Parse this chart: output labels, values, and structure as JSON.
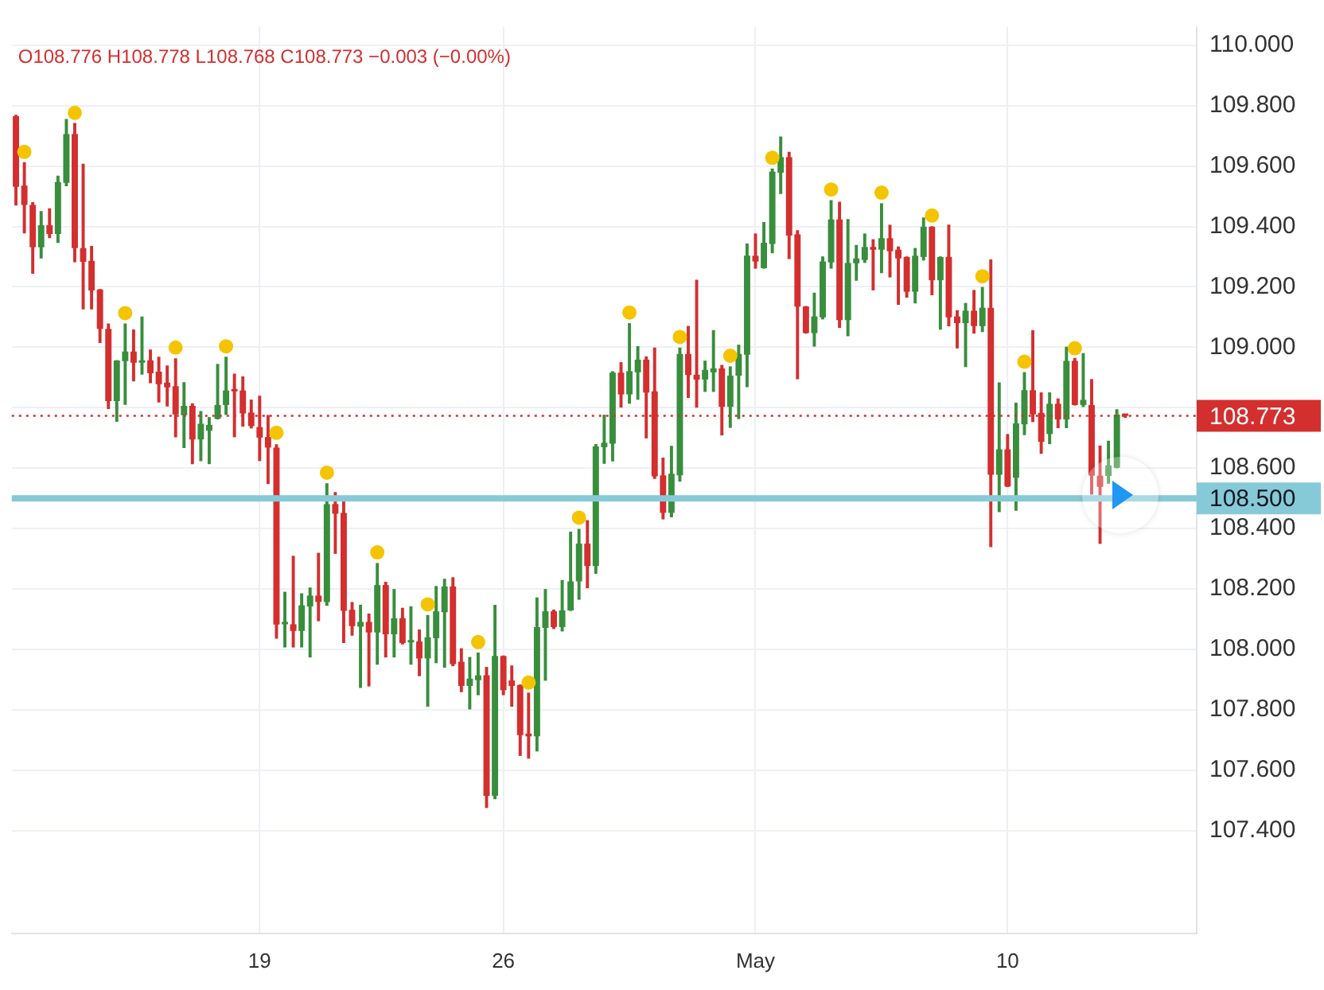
{
  "chart_data": {
    "type": "candlestick",
    "annotations": [
      "O108.776 H108.778 L108.768 C108.773 −0.003 (−0.00%)"
    ],
    "categories": [
      null,
      null,
      null,
      null,
      null,
      null,
      null,
      null,
      null,
      null,
      null,
      null,
      null,
      null,
      null,
      null,
      null,
      null,
      null,
      null,
      null,
      null,
      null,
      null,
      null,
      null,
      null,
      null,
      null,
      "19",
      null,
      null,
      null,
      null,
      null,
      null,
      null,
      null,
      null,
      null,
      null,
      null,
      null,
      null,
      null,
      null,
      null,
      null,
      null,
      null,
      null,
      null,
      null,
      null,
      null,
      null,
      null,
      null,
      "26",
      null,
      null,
      null,
      null,
      null,
      null,
      null,
      null,
      null,
      null,
      null,
      null,
      null,
      null,
      null,
      null,
      null,
      null,
      null,
      null,
      null,
      null,
      null,
      null,
      null,
      null,
      null,
      null,
      null,
      "May",
      null,
      null,
      null,
      null,
      null,
      null,
      null,
      null,
      null,
      null,
      null,
      null,
      null,
      null,
      null,
      null,
      null,
      null,
      null,
      null,
      null,
      null,
      null,
      null,
      null,
      null,
      null,
      null,
      null,
      "10",
      null,
      null,
      null,
      null,
      null,
      null,
      null,
      null,
      null,
      null,
      null,
      null,
      null,
      null,
      null,
      null,
      null,
      null,
      null,
      null,
      null,
      null
    ],
    "ohlc": [
      [
        109.765,
        109.768,
        109.471,
        109.531
      ],
      [
        109.535,
        109.611,
        109.379,
        109.471
      ],
      [
        109.471,
        109.479,
        109.245,
        109.331
      ],
      [
        109.331,
        109.449,
        109.296,
        109.404
      ],
      [
        109.404,
        109.458,
        109.363,
        109.375
      ],
      [
        109.375,
        109.566,
        109.347,
        109.547
      ],
      [
        109.544,
        109.754,
        109.535,
        109.706
      ],
      [
        109.706,
        109.741,
        109.283,
        109.328
      ],
      [
        109.328,
        109.606,
        109.127,
        109.283
      ],
      [
        109.286,
        109.334,
        109.127,
        109.188
      ],
      [
        109.191,
        109.191,
        109.016,
        109.061
      ],
      [
        109.061,
        109.077,
        108.797,
        108.822
      ],
      [
        108.822,
        108.956,
        108.755,
        108.956
      ],
      [
        108.954,
        109.077,
        108.811,
        108.986
      ],
      [
        108.986,
        109.057,
        108.889,
        108.949
      ],
      [
        108.949,
        109.1,
        108.911,
        108.957
      ],
      [
        108.957,
        108.991,
        108.883,
        108.914
      ],
      [
        108.919,
        108.967,
        108.819,
        108.878
      ],
      [
        108.883,
        108.938,
        108.806,
        108.867
      ],
      [
        108.871,
        108.962,
        108.704,
        108.778
      ],
      [
        108.775,
        108.883,
        108.668,
        108.806
      ],
      [
        108.806,
        108.813,
        108.615,
        108.695
      ],
      [
        108.695,
        108.787,
        108.625,
        108.747
      ],
      [
        108.724,
        108.767,
        108.615,
        108.743
      ],
      [
        108.763,
        108.943,
        108.763,
        108.809
      ],
      [
        108.809,
        108.967,
        108.778,
        108.857
      ],
      [
        108.857,
        108.911,
        108.704,
        108.854
      ],
      [
        108.857,
        108.902,
        108.739,
        108.781
      ],
      [
        108.784,
        108.825,
        108.733,
        108.739
      ],
      [
        108.736,
        108.838,
        108.625,
        108.701
      ],
      [
        108.703,
        108.774,
        108.549,
        108.668
      ],
      [
        108.668,
        108.677,
        108.037,
        108.082
      ],
      [
        108.083,
        108.189,
        108.008,
        108.086
      ],
      [
        108.083,
        108.308,
        108.008,
        108.061
      ],
      [
        108.061,
        108.184,
        108.008,
        108.146
      ],
      [
        108.142,
        108.203,
        107.975,
        108.178
      ],
      [
        108.178,
        108.318,
        108.095,
        108.157
      ],
      [
        108.157,
        108.548,
        108.146,
        108.481
      ],
      [
        108.481,
        108.519,
        108.318,
        108.449
      ],
      [
        108.452,
        108.5,
        108.023,
        108.128
      ],
      [
        108.131,
        108.155,
        108.047,
        108.077
      ],
      [
        108.075,
        108.146,
        107.874,
        108.091
      ],
      [
        108.091,
        108.117,
        107.879,
        108.056
      ],
      [
        108.056,
        108.284,
        107.951,
        108.213
      ],
      [
        108.213,
        108.222,
        107.975,
        108.05
      ],
      [
        108.05,
        108.198,
        107.975,
        108.103
      ],
      [
        108.103,
        108.136,
        108.018,
        108.021
      ],
      [
        108.023,
        108.141,
        107.951,
        108.026
      ],
      [
        108.026,
        108.064,
        107.913,
        107.97
      ],
      [
        107.97,
        108.112,
        107.812,
        108.04
      ],
      [
        108.037,
        108.208,
        107.956,
        108.126
      ],
      [
        108.123,
        108.232,
        107.941,
        108.208
      ],
      [
        108.208,
        108.237,
        107.946,
        107.951
      ],
      [
        107.959,
        108.002,
        107.86,
        107.879
      ],
      [
        107.879,
        107.973,
        107.803,
        107.903
      ],
      [
        107.898,
        107.988,
        107.85,
        107.914
      ],
      [
        107.914,
        107.94,
        107.477,
        107.515
      ],
      [
        107.515,
        108.146,
        107.506,
        107.978
      ],
      [
        107.978,
        107.978,
        107.85,
        107.865
      ],
      [
        107.897,
        107.945,
        107.812,
        107.879
      ],
      [
        107.882,
        107.882,
        107.649,
        107.716
      ],
      [
        107.721,
        107.855,
        107.64,
        107.712
      ],
      [
        107.712,
        108.17,
        107.664,
        108.074
      ],
      [
        108.071,
        108.198,
        107.898,
        108.126
      ],
      [
        108.126,
        108.13,
        108.069,
        108.074
      ],
      [
        108.074,
        108.228,
        108.061,
        108.129
      ],
      [
        108.129,
        108.388,
        108.129,
        108.225
      ],
      [
        108.225,
        108.397,
        108.166,
        108.35
      ],
      [
        108.35,
        108.426,
        108.204,
        108.276
      ],
      [
        108.276,
        108.678,
        108.252,
        108.672
      ],
      [
        108.669,
        108.775,
        108.616,
        108.684
      ],
      [
        108.681,
        108.919,
        108.624,
        108.916
      ],
      [
        108.916,
        108.949,
        108.802,
        108.844
      ],
      [
        108.844,
        109.078,
        108.815,
        108.921
      ],
      [
        108.917,
        109.002,
        108.828,
        108.959
      ],
      [
        108.959,
        108.968,
        108.7,
        108.85
      ],
      [
        108.854,
        108.997,
        108.566,
        108.573
      ],
      [
        108.576,
        108.633,
        108.432,
        108.452
      ],
      [
        108.452,
        108.672,
        108.439,
        108.581
      ],
      [
        108.576,
        108.997,
        108.557,
        108.978
      ],
      [
        108.978,
        109.069,
        108.834,
        108.908
      ],
      [
        108.909,
        109.222,
        108.802,
        108.893
      ],
      [
        108.893,
        108.954,
        108.854,
        108.925
      ],
      [
        108.917,
        109.055,
        108.854,
        108.93
      ],
      [
        108.93,
        108.94,
        108.71,
        108.803
      ],
      [
        108.803,
        108.935,
        108.735,
        108.906
      ],
      [
        108.906,
        109.007,
        108.764,
        108.978
      ],
      [
        108.975,
        109.342,
        108.87,
        109.303
      ],
      [
        109.303,
        109.375,
        109.262,
        109.284
      ],
      [
        109.262,
        109.413,
        109.262,
        109.346
      ],
      [
        109.342,
        109.59,
        109.313,
        109.581
      ],
      [
        109.578,
        109.696,
        109.509,
        109.629
      ],
      [
        109.629,
        109.645,
        109.294,
        109.37
      ],
      [
        109.374,
        109.386,
        108.896,
        109.135
      ],
      [
        109.135,
        109.135,
        109.047,
        109.047
      ],
      [
        109.047,
        109.179,
        109.004,
        109.102
      ],
      [
        109.099,
        109.299,
        109.094,
        109.284
      ],
      [
        109.281,
        109.485,
        109.262,
        109.423
      ],
      [
        109.423,
        109.48,
        109.066,
        109.09
      ],
      [
        109.09,
        109.423,
        109.038,
        109.279
      ],
      [
        109.278,
        109.337,
        109.222,
        109.294
      ],
      [
        109.289,
        109.375,
        109.281,
        109.332
      ],
      [
        109.332,
        109.356,
        109.19,
        109.323
      ],
      [
        109.323,
        109.475,
        109.247,
        109.361
      ],
      [
        109.361,
        109.404,
        109.233,
        109.318
      ],
      [
        109.323,
        109.332,
        109.142,
        109.294
      ],
      [
        109.299,
        109.299,
        109.166,
        109.184
      ],
      [
        109.184,
        109.327,
        109.147,
        109.303
      ],
      [
        109.299,
        109.428,
        109.289,
        109.399
      ],
      [
        109.399,
        109.399,
        109.174,
        109.222
      ],
      [
        109.222,
        109.299,
        109.06,
        109.299
      ],
      [
        109.299,
        109.404,
        109.071,
        109.099
      ],
      [
        109.102,
        109.121,
        108.998,
        109.08
      ],
      [
        109.08,
        109.145,
        108.936,
        109.121
      ],
      [
        109.121,
        109.188,
        109.047,
        109.07
      ],
      [
        109.07,
        109.198,
        109.052,
        109.131
      ],
      [
        109.131,
        109.289,
        108.34,
        108.578
      ],
      [
        108.578,
        108.882,
        108.456,
        108.662
      ],
      [
        108.662,
        108.711,
        108.539,
        108.539
      ],
      [
        108.568,
        108.815,
        108.461,
        108.748
      ],
      [
        108.745,
        108.916,
        108.711,
        108.858
      ],
      [
        108.858,
        109.055,
        108.754,
        108.778
      ],
      [
        108.783,
        108.849,
        108.649,
        108.687
      ],
      [
        108.713,
        108.849,
        108.681,
        108.813
      ],
      [
        108.813,
        108.829,
        108.734,
        108.761
      ],
      [
        108.761,
        109.0,
        108.734,
        108.955
      ],
      [
        108.955,
        108.963,
        108.809,
        108.809
      ],
      [
        108.809,
        108.979,
        108.804,
        108.826
      ],
      [
        108.809,
        108.893,
        108.514,
        108.575
      ],
      [
        108.575,
        108.673,
        108.351,
        108.538
      ],
      [
        108.574,
        108.689,
        108.55,
        108.609
      ],
      [
        108.601,
        108.793,
        108.601,
        108.777
      ],
      [
        108.776,
        108.778,
        108.768,
        108.773
      ],
      null,
      null,
      null,
      null,
      null,
      null,
      null,
      null
    ],
    "colors": [
      "#d32f2f",
      "#d32f2f",
      "#d32f2f",
      "#388e3c",
      "#d32f2f",
      "#388e3c",
      "#388e3c",
      "#d32f2f",
      "#d32f2f",
      "#d32f2f",
      "#d32f2f",
      "#d32f2f",
      "#388e3c",
      "#388e3c",
      "#d32f2f",
      "#388e3c",
      "#d32f2f",
      "#d32f2f",
      "#d32f2f",
      "#d32f2f",
      "#388e3c",
      "#d32f2f",
      "#388e3c",
      "#388e3c",
      "#388e3c",
      "#388e3c",
      "#d32f2f",
      "#d32f2f",
      "#d32f2f",
      "#d32f2f",
      "#d32f2f",
      "#d32f2f",
      "#388e3c",
      "#d32f2f",
      "#388e3c",
      "#388e3c",
      "#d32f2f",
      "#388e3c",
      "#d32f2f",
      "#d32f2f",
      "#d32f2f",
      "#388e3c",
      "#d32f2f",
      "#388e3c",
      "#d32f2f",
      "#388e3c",
      "#d32f2f",
      "#388e3c",
      "#d32f2f",
      "#388e3c",
      "#388e3c",
      "#388e3c",
      "#d32f2f",
      "#d32f2f",
      "#388e3c",
      "#388e3c",
      "#d32f2f",
      "#388e3c",
      "#d32f2f",
      "#d32f2f",
      "#d32f2f",
      "#d32f2f",
      "#388e3c",
      "#388e3c",
      "#d32f2f",
      "#388e3c",
      "#388e3c",
      "#388e3c",
      "#d32f2f",
      "#388e3c",
      "#388e3c",
      "#388e3c",
      "#d32f2f",
      "#388e3c",
      "#388e3c",
      "#d32f2f",
      "#d32f2f",
      "#d32f2f",
      "#388e3c",
      "#388e3c",
      "#d32f2f",
      "#d32f2f",
      "#388e3c",
      "#388e3c",
      "#d32f2f",
      "#388e3c",
      "#388e3c",
      "#388e3c",
      "#d32f2f",
      "#388e3c",
      "#388e3c",
      "#388e3c",
      "#d32f2f",
      "#d32f2f",
      "#d32f2f",
      "#388e3c",
      "#388e3c",
      "#388e3c",
      "#d32f2f",
      "#388e3c",
      "#388e3c",
      "#388e3c",
      "#d32f2f",
      "#388e3c",
      "#d32f2f",
      "#d32f2f",
      "#d32f2f",
      "#388e3c",
      "#388e3c",
      "#d32f2f",
      "#388e3c",
      "#d32f2f",
      "#d32f2f",
      "#388e3c",
      "#d32f2f",
      "#388e3c",
      "#d32f2f",
      "#388e3c",
      "#d32f2f",
      "#388e3c",
      "#388e3c",
      "#d32f2f",
      "#d32f2f",
      "#388e3c",
      "#d32f2f",
      "#388e3c",
      "#d32f2f",
      "#388e3c",
      "#d32f2f",
      "#d32f2f",
      "#388e3c",
      "#388e3c",
      "#d32f2f",
      null,
      null,
      null,
      null,
      null,
      null,
      null,
      null
    ],
    "series": [
      {
        "type": "scatter",
        "color": "#f5c400",
        "marker": "circle",
        "values": [
          null,
          109.647,
          null,
          null,
          null,
          null,
          null,
          109.776,
          null,
          null,
          null,
          null,
          null,
          109.113,
          null,
          null,
          null,
          null,
          null,
          108.999,
          null,
          null,
          null,
          null,
          null,
          109.003,
          null,
          null,
          null,
          null,
          null,
          108.717,
          null,
          null,
          null,
          null,
          null,
          108.585,
          null,
          null,
          null,
          null,
          null,
          108.321,
          null,
          null,
          null,
          null,
          null,
          108.149,
          null,
          null,
          null,
          null,
          null,
          108.024,
          null,
          null,
          null,
          null,
          null,
          107.89,
          null,
          null,
          null,
          null,
          null,
          108.436,
          null,
          null,
          null,
          null,
          null,
          109.115,
          null,
          null,
          null,
          null,
          null,
          109.034,
          null,
          null,
          null,
          null,
          null,
          108.972,
          null,
          null,
          null,
          null,
          109.627,
          null,
          null,
          null,
          null,
          null,
          null,
          109.522,
          null,
          null,
          null,
          null,
          null,
          109.512,
          null,
          null,
          null,
          null,
          null,
          109.436,
          null,
          null,
          null,
          null,
          null,
          109.235,
          null,
          null,
          null,
          null,
          108.952,
          null,
          null,
          null,
          null,
          null,
          108.997,
          null,
          null,
          null,
          null,
          null,
          null,
          null,
          null,
          null,
          null,
          null,
          null,
          null,
          null
        ]
      }
    ],
    "ylim": [
      107.06,
      110.06
    ],
    "yticks": [
      {
        "value": 107.4,
        "label": "107.400"
      },
      {
        "value": 107.6,
        "label": "107.600"
      },
      {
        "value": 107.8,
        "label": "107.800"
      },
      {
        "value": 108.0,
        "label": "108.000"
      },
      {
        "value": 108.2,
        "label": "108.200"
      },
      {
        "value": 108.4,
        "label": "108.400"
      },
      {
        "value": 108.6,
        "label": "108.600"
      },
      {
        "value": 108.8,
        "label": null
      },
      {
        "value": 109.0,
        "label": "109.000"
      },
      {
        "value": 109.2,
        "label": "109.200"
      },
      {
        "value": 109.4,
        "label": "109.400"
      },
      {
        "value": 109.6,
        "label": "109.600"
      },
      {
        "value": 109.8,
        "label": "109.800"
      },
      {
        "value": 110.0,
        "label": "110.000"
      }
    ],
    "grid": true,
    "ref_lines": [
      {
        "axis": "y",
        "value": 108.5,
        "label": "108.500",
        "color": "#86cad8",
        "line_style": "solid"
      },
      {
        "axis": "y",
        "value": 108.773,
        "label": "108.773",
        "color": "#d32f2f",
        "line_style": "dotted"
      }
    ]
  }
}
